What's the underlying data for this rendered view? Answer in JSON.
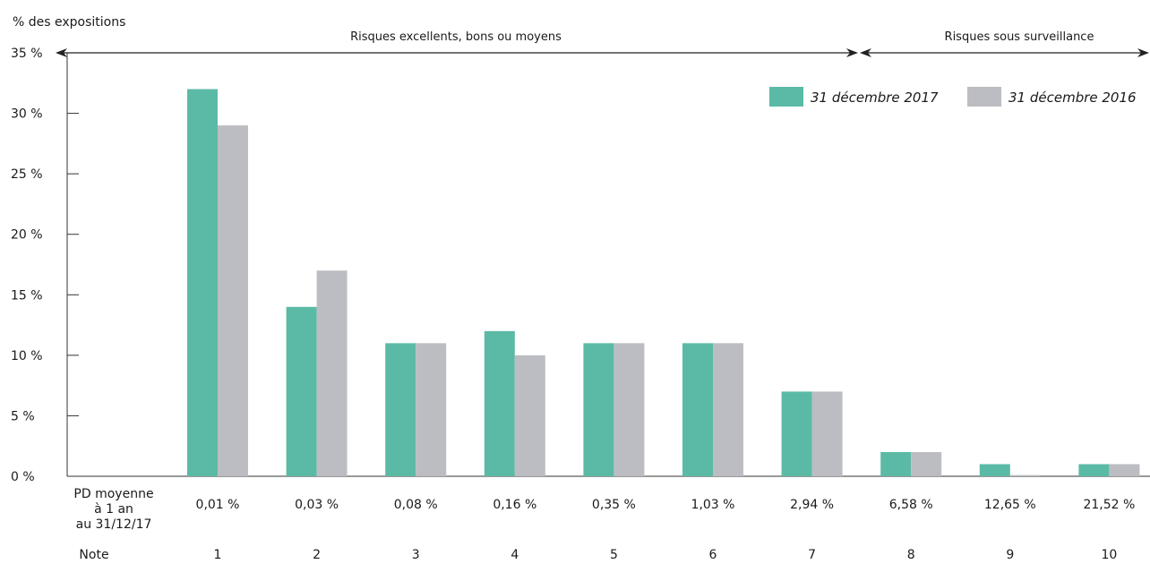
{
  "chart_data": {
    "type": "bar",
    "ylabel": "% des expositions",
    "ylim": [
      0,
      35
    ],
    "yticks": [
      "0 %",
      "5 %",
      "10 %",
      "15 %",
      "20 %",
      "25 %",
      "30 %",
      "35 %"
    ],
    "row_labels": {
      "pd_line1": "PD moyenne",
      "pd_line2": "à 1 an",
      "pd_line3": "au 31/12/17",
      "note": "Note"
    },
    "categories": [
      "1",
      "2",
      "3",
      "4",
      "5",
      "6",
      "7",
      "8",
      "9",
      "10"
    ],
    "pd_values": [
      "0,01 %",
      "0,03 %",
      "0,08 %",
      "0,16 %",
      "0,35 %",
      "1,03 %",
      "2,94 %",
      "6,58 %",
      "12,65 %",
      "21,52 %"
    ],
    "series": [
      {
        "name": "31 décembre 2017",
        "color": "#5bbaa5",
        "values": [
          32,
          14,
          11,
          12,
          11,
          11,
          7,
          2,
          1,
          1
        ]
      },
      {
        "name": "31 décembre 2016",
        "color": "#bcbdc2",
        "values": [
          29,
          17,
          11,
          10,
          11,
          11,
          7,
          2,
          0.1,
          1
        ]
      }
    ],
    "brackets": [
      {
        "label": "Risques excellents, bons ou moyens"
      },
      {
        "label": "Risques sous surveillance"
      }
    ],
    "grid": false,
    "legend_position": "top-right"
  }
}
